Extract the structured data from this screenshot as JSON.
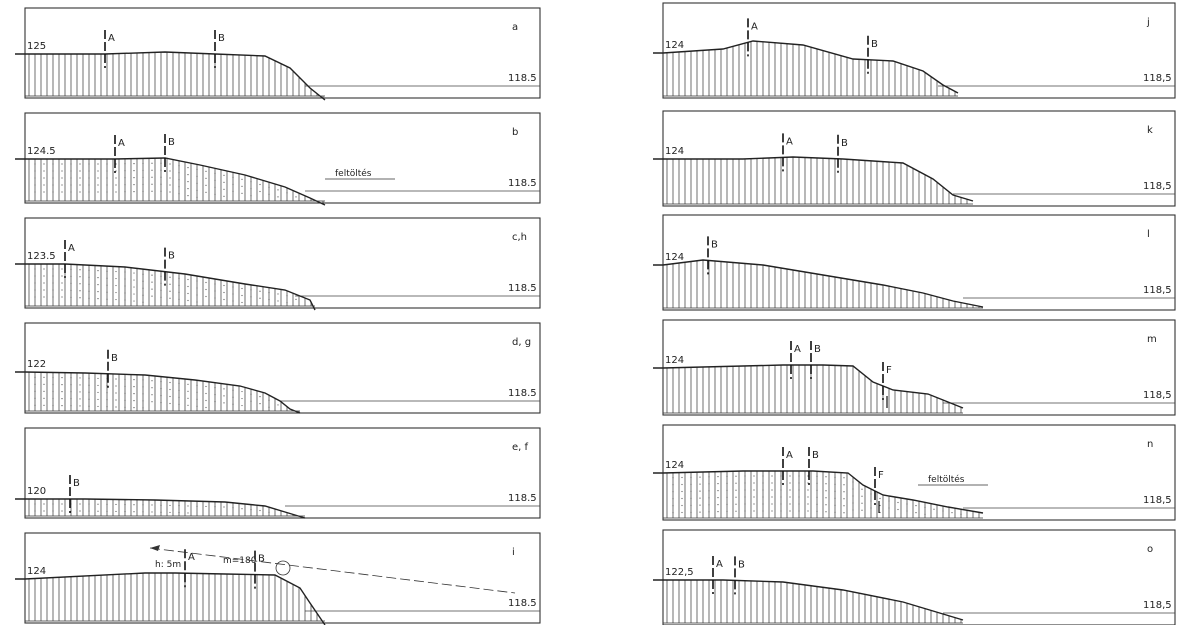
{
  "columns": {
    "left": [
      {
        "letter": "a",
        "left_elev": "125",
        "right_elev": "118.5",
        "markers": [
          "A",
          "B"
        ]
      },
      {
        "letter": "b",
        "left_elev": "124.5",
        "right_elev": "118.5",
        "markers": [
          "A",
          "B"
        ],
        "annotation": "feltöltés"
      },
      {
        "letter": "c,h",
        "left_elev": "123.5",
        "right_elev": "118.5",
        "markers": [
          "A",
          "B"
        ]
      },
      {
        "letter": "d, g",
        "left_elev": "122",
        "right_elev": "118.5",
        "markers": [
          "B"
        ]
      },
      {
        "letter": "e, f",
        "left_elev": "120",
        "right_elev": "118.5",
        "markers": [
          "B"
        ]
      },
      {
        "letter": "i",
        "left_elev": "124",
        "right_elev": "118.5",
        "markers": [
          "A",
          "B"
        ],
        "note_h": "h: 5m",
        "note_m": "m=180"
      }
    ],
    "right": [
      {
        "letter": "j",
        "left_elev": "124",
        "right_elev": "118,5",
        "markers": [
          "A",
          "B"
        ]
      },
      {
        "letter": "k",
        "left_elev": "124",
        "right_elev": "118,5",
        "markers": [
          "A",
          "B"
        ]
      },
      {
        "letter": "l",
        "left_elev": "124",
        "right_elev": "118,5",
        "markers": [
          "B"
        ]
      },
      {
        "letter": "m",
        "left_elev": "124",
        "right_elev": "118,5",
        "markers": [
          "A",
          "B",
          "F"
        ]
      },
      {
        "letter": "n",
        "left_elev": "124",
        "right_elev": "118,5",
        "markers": [
          "A",
          "B",
          "F"
        ],
        "annotation": "feltöltés"
      },
      {
        "letter": "o",
        "left_elev": "122,5",
        "right_elev": "118,5",
        "markers": [
          "A",
          "B"
        ]
      }
    ]
  }
}
